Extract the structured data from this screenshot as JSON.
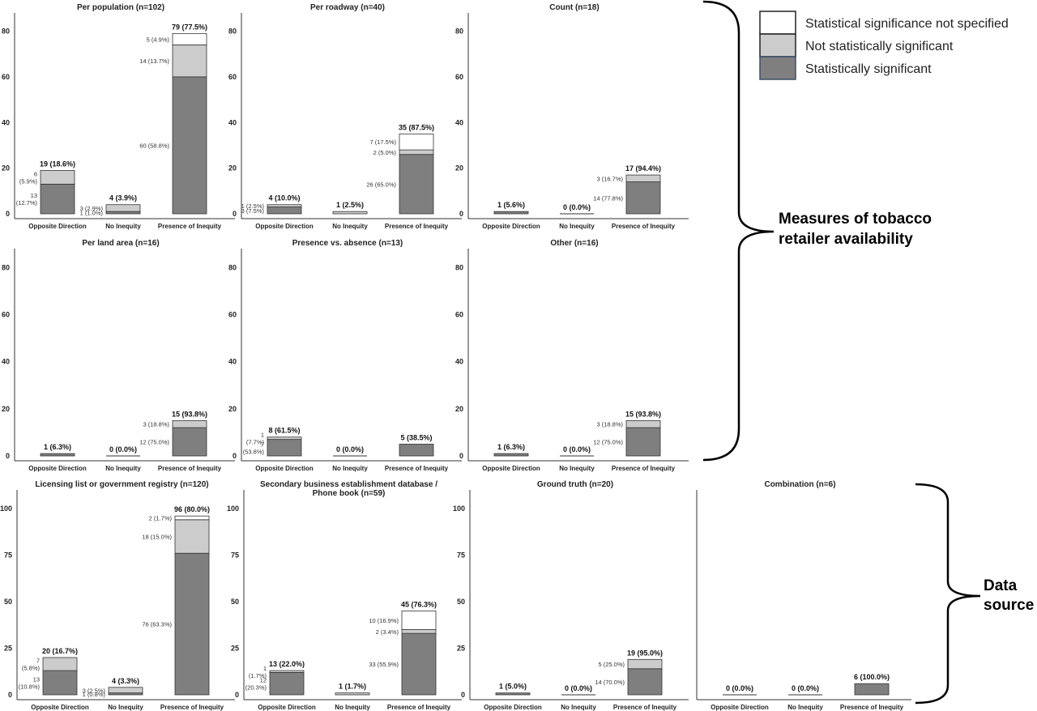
{
  "figure": {
    "legend": [
      {
        "key": "not_specified",
        "label": "Statistical significance not specified",
        "color": "#ffffff"
      },
      {
        "key": "not_sig",
        "label": "Not statistically significant",
        "color": "#cccccc"
      },
      {
        "key": "sig",
        "label": "Statistically significant",
        "color": "#7f7f7f"
      }
    ],
    "groups": [
      {
        "label_lines": [
          "Measures of tobacco",
          "retailer availability"
        ]
      },
      {
        "label_lines": [
          "Data",
          "source"
        ]
      }
    ]
  },
  "chart_data": [
    {
      "type": "bar",
      "stacked": true,
      "title": "Per population (n=102)",
      "categories": [
        "Opposite Direction",
        "No Inequity",
        "Presence of Inequity"
      ],
      "ylim": [
        0,
        88
      ],
      "yticks": [
        0,
        20,
        40,
        60,
        80
      ],
      "series": [
        {
          "name": "Statistically significant",
          "values": [
            13,
            1,
            60
          ]
        },
        {
          "name": "Not statistically significant",
          "values": [
            6,
            3,
            14
          ]
        },
        {
          "name": "Statistical significance not specified",
          "values": [
            0,
            0,
            5
          ]
        }
      ],
      "totals": [
        "19 (18.6%)",
        "4 (3.9%)",
        "79 (77.5%)"
      ],
      "segment_labels": [
        [
          [
            "13",
            "(12.7%)"
          ],
          [
            "1 (1.0%)"
          ],
          [
            "60 (58.8%)"
          ]
        ],
        [
          [
            "6",
            "(5.9%)"
          ],
          [
            "3 (2.9%)"
          ],
          [
            "14 (13.7%)"
          ]
        ],
        [
          [],
          [],
          [
            "5 (4.9%)"
          ]
        ]
      ]
    },
    {
      "type": "bar",
      "stacked": true,
      "title": "Per roadway (n=40)",
      "categories": [
        "Opposite Direction",
        "No Inequity",
        "Presence of Inequity"
      ],
      "ylim": [
        0,
        88
      ],
      "yticks": [
        0,
        20,
        40,
        60,
        80
      ],
      "series": [
        {
          "name": "Statistically significant",
          "values": [
            3,
            0,
            26
          ]
        },
        {
          "name": "Not statistically significant",
          "values": [
            1,
            1,
            2
          ]
        },
        {
          "name": "Statistical significance not specified",
          "values": [
            0,
            0,
            7
          ]
        }
      ],
      "totals": [
        "4 (10.0%)",
        "1 (2.5%)",
        "35 (87.5%)"
      ],
      "segment_labels": [
        [
          [
            "3 (7.5%)"
          ],
          [],
          [
            "26 (65.0%)"
          ]
        ],
        [
          [
            "1 (2.5%)"
          ],
          [],
          [
            "2 (5.0%)"
          ]
        ],
        [
          [],
          [],
          [
            "7 (17.5%)"
          ]
        ]
      ]
    },
    {
      "type": "bar",
      "stacked": true,
      "title": "Count (n=18)",
      "categories": [
        "Opposite Direction",
        "No Inequity",
        "Presence of Inequity"
      ],
      "ylim": [
        0,
        88
      ],
      "yticks": [
        0,
        20,
        40,
        60,
        80
      ],
      "series": [
        {
          "name": "Statistically significant",
          "values": [
            1,
            0,
            14
          ]
        },
        {
          "name": "Not statistically significant",
          "values": [
            0,
            0,
            3
          ]
        },
        {
          "name": "Statistical significance not specified",
          "values": [
            0,
            0,
            0
          ]
        }
      ],
      "totals": [
        "1 (5.6%)",
        "0 (0.0%)",
        "17 (94.4%)"
      ],
      "segment_labels": [
        [
          [],
          [],
          [
            "14 (77.8%)"
          ]
        ],
        [
          [],
          [],
          [
            "3 (16.7%)"
          ]
        ],
        [
          [],
          [],
          []
        ]
      ]
    },
    {
      "type": "bar",
      "stacked": true,
      "title": "Per land area (n=16)",
      "categories": [
        "Opposite Direction",
        "No Inequity",
        "Presence of Inequity"
      ],
      "ylim": [
        0,
        88
      ],
      "yticks": [
        0,
        20,
        40,
        60,
        80
      ],
      "series": [
        {
          "name": "Statistically significant",
          "values": [
            1,
            0,
            12
          ]
        },
        {
          "name": "Not statistically significant",
          "values": [
            0,
            0,
            3
          ]
        },
        {
          "name": "Statistical significance not specified",
          "values": [
            0,
            0,
            0
          ]
        }
      ],
      "totals": [
        "1 (6.3%)",
        "0 (0.0%)",
        "15 (93.8%)"
      ],
      "segment_labels": [
        [
          [],
          [],
          [
            "12 (75.0%)"
          ]
        ],
        [
          [],
          [],
          [
            "3 (18.8%)"
          ]
        ],
        [
          [],
          [],
          []
        ]
      ]
    },
    {
      "type": "bar",
      "stacked": true,
      "title": "Presence vs. absence (n=13)",
      "categories": [
        "Opposite Direction",
        "No Inequity",
        "Presence of Inequity"
      ],
      "ylim": [
        0,
        88
      ],
      "yticks": [
        0,
        20,
        40,
        60,
        80
      ],
      "series": [
        {
          "name": "Statistically significant",
          "values": [
            7,
            0,
            5
          ]
        },
        {
          "name": "Not statistically significant",
          "values": [
            1,
            0,
            0
          ]
        },
        {
          "name": "Statistical significance not specified",
          "values": [
            0,
            0,
            0
          ]
        }
      ],
      "totals": [
        "8 (61.5%)",
        "0 (0.0%)",
        "5 (38.5%)"
      ],
      "segment_labels": [
        [
          [
            "7",
            "(53.8%)"
          ],
          [],
          []
        ],
        [
          [
            "1",
            "(7.7%)"
          ],
          [],
          []
        ],
        [
          [],
          [],
          []
        ]
      ]
    },
    {
      "type": "bar",
      "stacked": true,
      "title": "Other (n=16)",
      "categories": [
        "Opposite Direction",
        "No Inequity",
        "Presence of Inequity"
      ],
      "ylim": [
        0,
        88
      ],
      "yticks": [
        0,
        20,
        40,
        60,
        80
      ],
      "series": [
        {
          "name": "Statistically significant",
          "values": [
            1,
            0,
            12
          ]
        },
        {
          "name": "Not statistically significant",
          "values": [
            0,
            0,
            3
          ]
        },
        {
          "name": "Statistical significance not specified",
          "values": [
            0,
            0,
            0
          ]
        }
      ],
      "totals": [
        "1 (6.3%)",
        "0 (0.0%)",
        "15 (93.8%)"
      ],
      "segment_labels": [
        [
          [],
          [],
          [
            "12 (75.0%)"
          ]
        ],
        [
          [],
          [],
          [
            "3 (18.8%)"
          ]
        ],
        [
          [],
          [],
          []
        ]
      ]
    },
    {
      "type": "bar",
      "stacked": true,
      "title": "Licensing list or government registry (n=120)",
      "categories": [
        "Opposite Direction",
        "No Inequity",
        "Presence of Inequity"
      ],
      "ylim": [
        0,
        110
      ],
      "yticks": [
        0,
        25,
        50,
        75,
        100
      ],
      "series": [
        {
          "name": "Statistically significant",
          "values": [
            13,
            1,
            76
          ]
        },
        {
          "name": "Not statistically significant",
          "values": [
            7,
            3,
            18
          ]
        },
        {
          "name": "Statistical significance not specified",
          "values": [
            0,
            0,
            2
          ]
        }
      ],
      "totals": [
        "20 (16.7%)",
        "4 (3.3%)",
        "96 (80.0%)"
      ],
      "segment_labels": [
        [
          [
            "13",
            "(10.8%)"
          ],
          [
            "1 (0.8%)"
          ],
          [
            "76 (63.3%)"
          ]
        ],
        [
          [
            "7",
            "(5.8%)"
          ],
          [
            "3 (2.5%)"
          ],
          [
            "18 (15.0%)"
          ]
        ],
        [
          [],
          [],
          [
            "2 (1.7%)"
          ]
        ]
      ]
    },
    {
      "type": "bar",
      "stacked": true,
      "title": [
        "Secondary business establishment database /",
        "Phone book (n=59)"
      ],
      "categories": [
        "Opposite Direction",
        "No Inequity",
        "Presence of Inequity"
      ],
      "ylim": [
        0,
        110
      ],
      "yticks": [
        0,
        25,
        50,
        75,
        100
      ],
      "series": [
        {
          "name": "Statistically significant",
          "values": [
            12,
            0,
            33
          ]
        },
        {
          "name": "Not statistically significant",
          "values": [
            1,
            1,
            2
          ]
        },
        {
          "name": "Statistical significance not specified",
          "values": [
            0,
            0,
            10
          ]
        }
      ],
      "totals": [
        "13 (22.0%)",
        "1 (1.7%)",
        "45 (76.3%)"
      ],
      "segment_labels": [
        [
          [
            "12",
            "(20.3%)"
          ],
          [],
          [
            "33 (55.9%)"
          ]
        ],
        [
          [
            "1",
            "(1.7%)"
          ],
          [],
          [
            "2 (3.4%)"
          ]
        ],
        [
          [],
          [],
          [
            "10 (16.9%)"
          ]
        ]
      ]
    },
    {
      "type": "bar",
      "stacked": true,
      "title": "Ground truth (n=20)",
      "categories": [
        "Opposite Direction",
        "No Inequity",
        "Presence of Inequity"
      ],
      "ylim": [
        0,
        110
      ],
      "yticks": [
        0,
        25,
        50,
        75,
        100
      ],
      "series": [
        {
          "name": "Statistically significant",
          "values": [
            1,
            0,
            14
          ]
        },
        {
          "name": "Not statistically significant",
          "values": [
            0,
            0,
            5
          ]
        },
        {
          "name": "Statistical significance not specified",
          "values": [
            0,
            0,
            0
          ]
        }
      ],
      "totals": [
        "1 (5.0%)",
        "0 (0.0%)",
        "19 (95.0%)"
      ],
      "segment_labels": [
        [
          [],
          [],
          [
            "14 (70.0%)"
          ]
        ],
        [
          [],
          [],
          [
            "5 (25.0%)"
          ]
        ],
        [
          [],
          [],
          []
        ]
      ]
    },
    {
      "type": "bar",
      "stacked": true,
      "title": "Combination (n=6)",
      "categories": [
        "Opposite Direction",
        "No Inequity",
        "Presence of Inequity"
      ],
      "ylim": [
        0,
        110
      ],
      "yticks": [],
      "series": [
        {
          "name": "Statistically significant",
          "values": [
            0,
            0,
            6
          ]
        },
        {
          "name": "Not statistically significant",
          "values": [
            0,
            0,
            0
          ]
        },
        {
          "name": "Statistical significance not specified",
          "values": [
            0,
            0,
            0
          ]
        }
      ],
      "totals": [
        "0 (0.0%)",
        "0 (0.0%)",
        "6 (100.0%)"
      ],
      "segment_labels": [
        [
          [],
          [],
          []
        ],
        [
          [],
          [],
          []
        ],
        [
          [],
          [],
          []
        ]
      ]
    }
  ]
}
